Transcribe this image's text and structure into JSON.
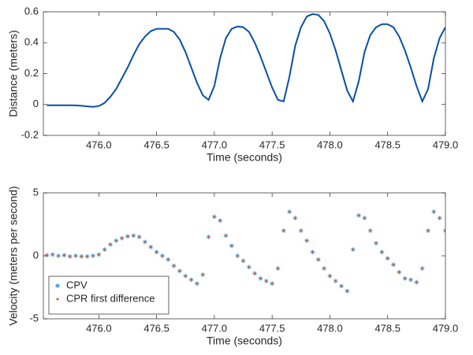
{
  "chart_data": [
    {
      "type": "line",
      "ylabel": "Distance (meters)",
      "xlabel": "Time (seconds)",
      "x": [
        475.55,
        475.6,
        475.65,
        475.7,
        475.75,
        475.8,
        475.85,
        475.9,
        475.95,
        476.0,
        476.05,
        476.1,
        476.15,
        476.2,
        476.25,
        476.3,
        476.35,
        476.4,
        476.45,
        476.5,
        476.55,
        476.6,
        476.65,
        476.7,
        476.75,
        476.8,
        476.85,
        476.9,
        476.95,
        477.0,
        477.05,
        477.1,
        477.15,
        477.2,
        477.25,
        477.3,
        477.35,
        477.4,
        477.45,
        477.5,
        477.55,
        477.6,
        477.65,
        477.7,
        477.75,
        477.8,
        477.85,
        477.9,
        477.95,
        478.0,
        478.05,
        478.1,
        478.15,
        478.2,
        478.25,
        478.3,
        478.35,
        478.4,
        478.45,
        478.5,
        478.55,
        478.6,
        478.65,
        478.7,
        478.75,
        478.8,
        478.85,
        478.9,
        478.95,
        479.0
      ],
      "values": [
        -0.005,
        -0.005,
        -0.005,
        -0.005,
        -0.005,
        -0.006,
        -0.008,
        -0.012,
        -0.015,
        -0.01,
        0.01,
        0.05,
        0.1,
        0.17,
        0.24,
        0.32,
        0.39,
        0.44,
        0.475,
        0.49,
        0.49,
        0.49,
        0.47,
        0.42,
        0.34,
        0.24,
        0.14,
        0.06,
        0.03,
        0.12,
        0.3,
        0.43,
        0.49,
        0.505,
        0.5,
        0.47,
        0.4,
        0.31,
        0.21,
        0.11,
        0.03,
        0.02,
        0.18,
        0.38,
        0.5,
        0.57,
        0.585,
        0.58,
        0.54,
        0.46,
        0.35,
        0.22,
        0.09,
        0.02,
        0.15,
        0.34,
        0.45,
        0.5,
        0.52,
        0.52,
        0.5,
        0.44,
        0.35,
        0.24,
        0.12,
        0.02,
        0.1,
        0.3,
        0.43,
        0.5
      ],
      "color": "#0a4fa6",
      "xlim": [
        475.52,
        479
      ],
      "xticks": [
        {
          "value": 476,
          "label": "476.0"
        },
        476.5,
        {
          "value": 477,
          "label": "477.0"
        },
        477.5,
        {
          "value": 478,
          "label": "478.0"
        },
        478.5,
        {
          "value": 479,
          "label": "479.0"
        }
      ],
      "ylim": [
        -0.2,
        0.6
      ],
      "yticks": [
        -0.2,
        0,
        0.2,
        0.4,
        0.6
      ]
    },
    {
      "type": "scatter",
      "ylabel": "Velocity (meters per second)",
      "xlabel": "Time (seconds)",
      "legend": "lower left",
      "x": [
        475.55,
        475.6,
        475.65,
        475.7,
        475.75,
        475.8,
        475.85,
        475.9,
        475.95,
        476.0,
        476.05,
        476.1,
        476.15,
        476.2,
        476.25,
        476.3,
        476.35,
        476.4,
        476.45,
        476.5,
        476.55,
        476.6,
        476.65,
        476.7,
        476.75,
        476.8,
        476.85,
        476.9,
        476.95,
        477.0,
        477.05,
        477.1,
        477.15,
        477.2,
        477.25,
        477.3,
        477.35,
        477.4,
        477.45,
        477.5,
        477.55,
        477.6,
        477.65,
        477.7,
        477.75,
        477.8,
        477.85,
        477.9,
        477.95,
        478.0,
        478.05,
        478.1,
        478.15,
        478.2,
        478.25,
        478.3,
        478.35,
        478.4,
        478.45,
        478.5,
        478.55,
        478.6,
        478.65,
        478.7,
        478.75,
        478.8,
        478.85,
        478.9,
        478.95,
        479.0
      ],
      "series": [
        {
          "name": "CPV",
          "color": "#3a9ad9",
          "marker": "asterisk",
          "values": [
            0.05,
            0.1,
            0,
            0.05,
            -0.05,
            0,
            -0.05,
            -0.05,
            0,
            0.1,
            0.5,
            0.9,
            1.2,
            1.4,
            1.55,
            1.6,
            1.5,
            1.1,
            0.7,
            0.3,
            0,
            -0.3,
            -0.8,
            -1.2,
            -1.6,
            -1.9,
            -2.2,
            -1.5,
            1.5,
            3.1,
            2.8,
            1.6,
            0.8,
            0,
            -0.4,
            -0.9,
            -1.4,
            -1.8,
            -2,
            -2.2,
            -1,
            2,
            3.5,
            3,
            2,
            1.2,
            0.3,
            -0.3,
            -1,
            -1.6,
            -2,
            -2.4,
            -2.8,
            0.5,
            3.2,
            3,
            2,
            1,
            0.3,
            -0.2,
            -0.7,
            -1.3,
            -1.8,
            -1.9,
            -2.1,
            -1,
            2,
            3.5,
            3,
            2
          ]
        },
        {
          "name": "CPR first difference",
          "color": "#d9541e",
          "marker": "dot",
          "values": [
            0.05,
            0.1,
            0,
            0.05,
            -0.05,
            0,
            -0.05,
            -0.05,
            0,
            0.1,
            0.5,
            0.9,
            1.2,
            1.4,
            1.55,
            1.6,
            1.5,
            1.1,
            0.7,
            0.3,
            0,
            -0.3,
            -0.8,
            -1.2,
            -1.6,
            -1.9,
            -2.2,
            -1.5,
            1.5,
            3.1,
            2.8,
            1.6,
            0.8,
            0,
            -0.4,
            -0.9,
            -1.4,
            -1.8,
            -2,
            -2.2,
            -1,
            2,
            3.5,
            3,
            2,
            1.2,
            0.3,
            -0.3,
            -1,
            -1.6,
            -2,
            -2.4,
            -2.8,
            0.5,
            3.2,
            3,
            2,
            1,
            0.3,
            -0.2,
            -0.7,
            -1.3,
            -1.8,
            -1.9,
            -2.1,
            -1,
            2,
            3.5,
            3,
            2
          ]
        }
      ],
      "xlim": [
        475.52,
        479
      ],
      "xticks": [
        {
          "value": 476,
          "label": "476.0"
        },
        476.5,
        {
          "value": 477,
          "label": "477.0"
        },
        477.5,
        {
          "value": 478,
          "label": "478.0"
        },
        478.5,
        {
          "value": 479,
          "label": "479.0"
        }
      ],
      "ylim": [
        -5,
        5
      ],
      "yticks": [
        -5,
        0,
        5
      ]
    }
  ]
}
